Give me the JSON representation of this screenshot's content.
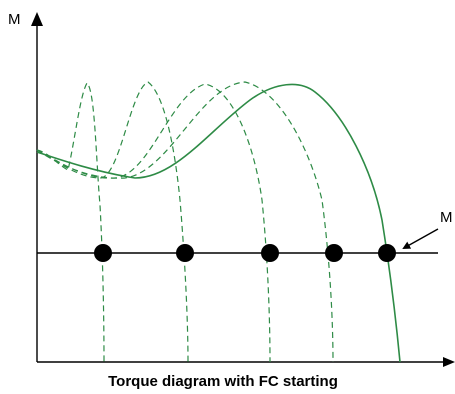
{
  "labels": {
    "y_axis": "M",
    "load_label": "M",
    "caption": "Torque diagram with FC starting"
  },
  "colors": {
    "curve": "#2e8b46",
    "axis": "#000000",
    "operating_point": "#000000"
  },
  "chart_data": {
    "type": "line",
    "title": "Torque diagram with FC starting",
    "ylabel": "M",
    "xlabel": "",
    "series": [
      {
        "style": "dashed"
      },
      {
        "style": "dashed"
      },
      {
        "style": "dashed"
      },
      {
        "style": "dashed"
      },
      {
        "style": "solid"
      }
    ],
    "operating_points": 5
  }
}
